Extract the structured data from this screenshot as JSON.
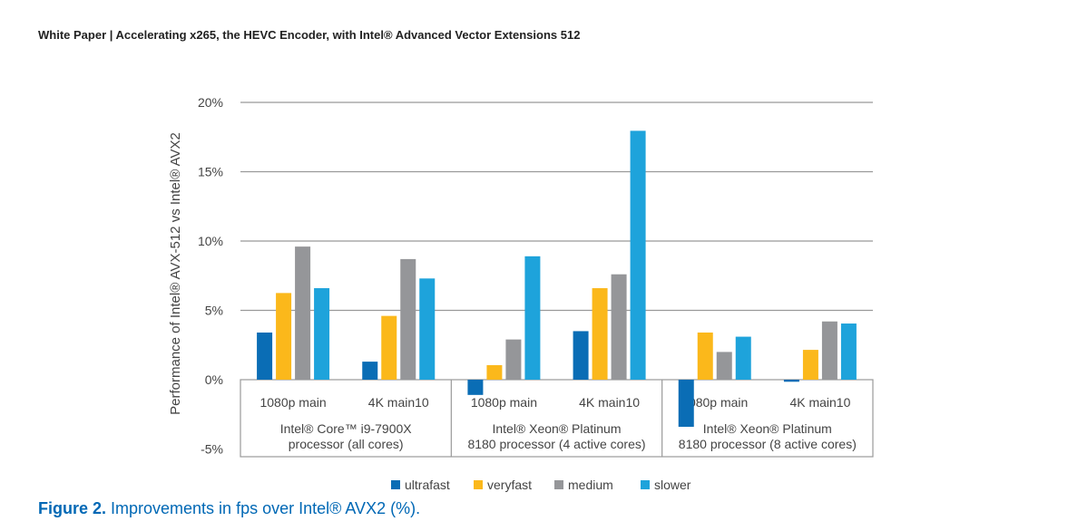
{
  "header": "White Paper | Accelerating x265, the HEVC Encoder, with Intel® Advanced Vector Extensions 512",
  "caption": {
    "label": "Figure 2.",
    "text": " Improvements in fps over Intel® AVX2 (%)."
  },
  "chart_data": {
    "type": "bar",
    "title": "Improvements in fps over Intel® AVX2 (%)",
    "ylabel": "Performance of Intel® AVX-512 vs Intel® AVX2",
    "ylim": [
      -5,
      20
    ],
    "yticks": [
      20,
      15,
      10,
      5,
      0,
      -5
    ],
    "ytick_labels": [
      "20%",
      "15%",
      "10%",
      "5%",
      "0%",
      "-5%"
    ],
    "grid": true,
    "legend_position": "bottom",
    "categories": [
      "1080p main",
      "4K main10",
      "1080p main",
      "4K main10",
      "1080p main",
      "4K main10"
    ],
    "groups": [
      {
        "lines": [
          "Intel® Core™ i9-7900X",
          "processor (all cores)"
        ]
      },
      {
        "lines": [
          "Intel® Xeon® Platinum",
          "8180 processor (4 active cores)"
        ]
      },
      {
        "lines": [
          "Intel® Xeon® Platinum",
          "8180 processor (8 active cores)"
        ]
      }
    ],
    "series": [
      {
        "name": "ultrafast",
        "color": "#0a6db5",
        "values": [
          3.4,
          1.3,
          -1.1,
          3.5,
          -3.4,
          -0.15
        ]
      },
      {
        "name": "veryfast",
        "color": "#fbb81b",
        "values": [
          6.25,
          4.6,
          1.05,
          6.6,
          3.4,
          2.15
        ]
      },
      {
        "name": "medium",
        "color": "#959699",
        "values": [
          9.6,
          8.7,
          2.9,
          7.6,
          2.0,
          4.2
        ]
      },
      {
        "name": "slower",
        "color": "#1ea3db",
        "values": [
          6.6,
          7.3,
          8.9,
          17.95,
          3.1,
          4.05
        ]
      }
    ]
  }
}
